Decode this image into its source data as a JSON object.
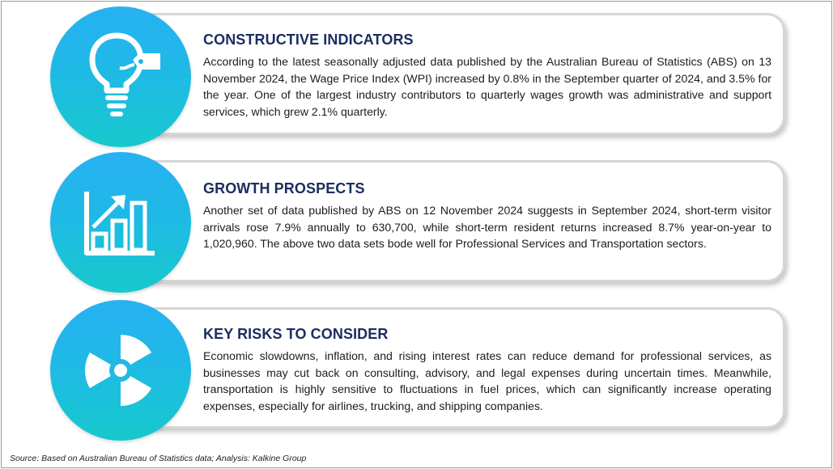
{
  "sections": [
    {
      "title": "CONSTRUCTIVE INDICATORS",
      "icon": "lightbulb-tag-icon",
      "body": "According to the latest seasonally adjusted data published by the Australian Bureau of Statistics (ABS) on 13 November 2024, the Wage Price Index (WPI) increased by 0.8% in the September quarter of 2024, and 3.5% for the year. One of the largest industry contributors to quarterly wages growth was administrative and support services, which grew 2.1% quarterly."
    },
    {
      "title": "GROWTH PROSPECTS",
      "icon": "growth-bar-chart-icon",
      "body": "Another set of data published by ABS on 12 November 2024 suggests in September 2024, short-term visitor arrivals rose 7.9% annually to 630,700, while short-term resident returns increased 8.7% year-on-year to 1,020,960. The above two data sets bode well for Professional Services and Transportation sectors."
    },
    {
      "title": "KEY RISKS TO CONSIDER",
      "icon": "radiation-hazard-icon",
      "body": "Economic slowdowns, inflation, and rising interest rates can reduce demand for professional services, as businesses may cut back on consulting, advisory, and legal expenses during uncertain times. Meanwhile, transportation is highly sensitive to fluctuations in fuel prices, which can significantly increase operating expenses, especially for airlines, trucking, and shipping companies."
    }
  ],
  "source": "Source: Based on Australian Bureau of Statistics data; Analysis: Kalkine Group",
  "colors": {
    "heading": "#1b2d5f",
    "circle_top": "#27b1f2",
    "circle_bottom": "#17c9cc",
    "card_border": "#d6d6d6"
  }
}
